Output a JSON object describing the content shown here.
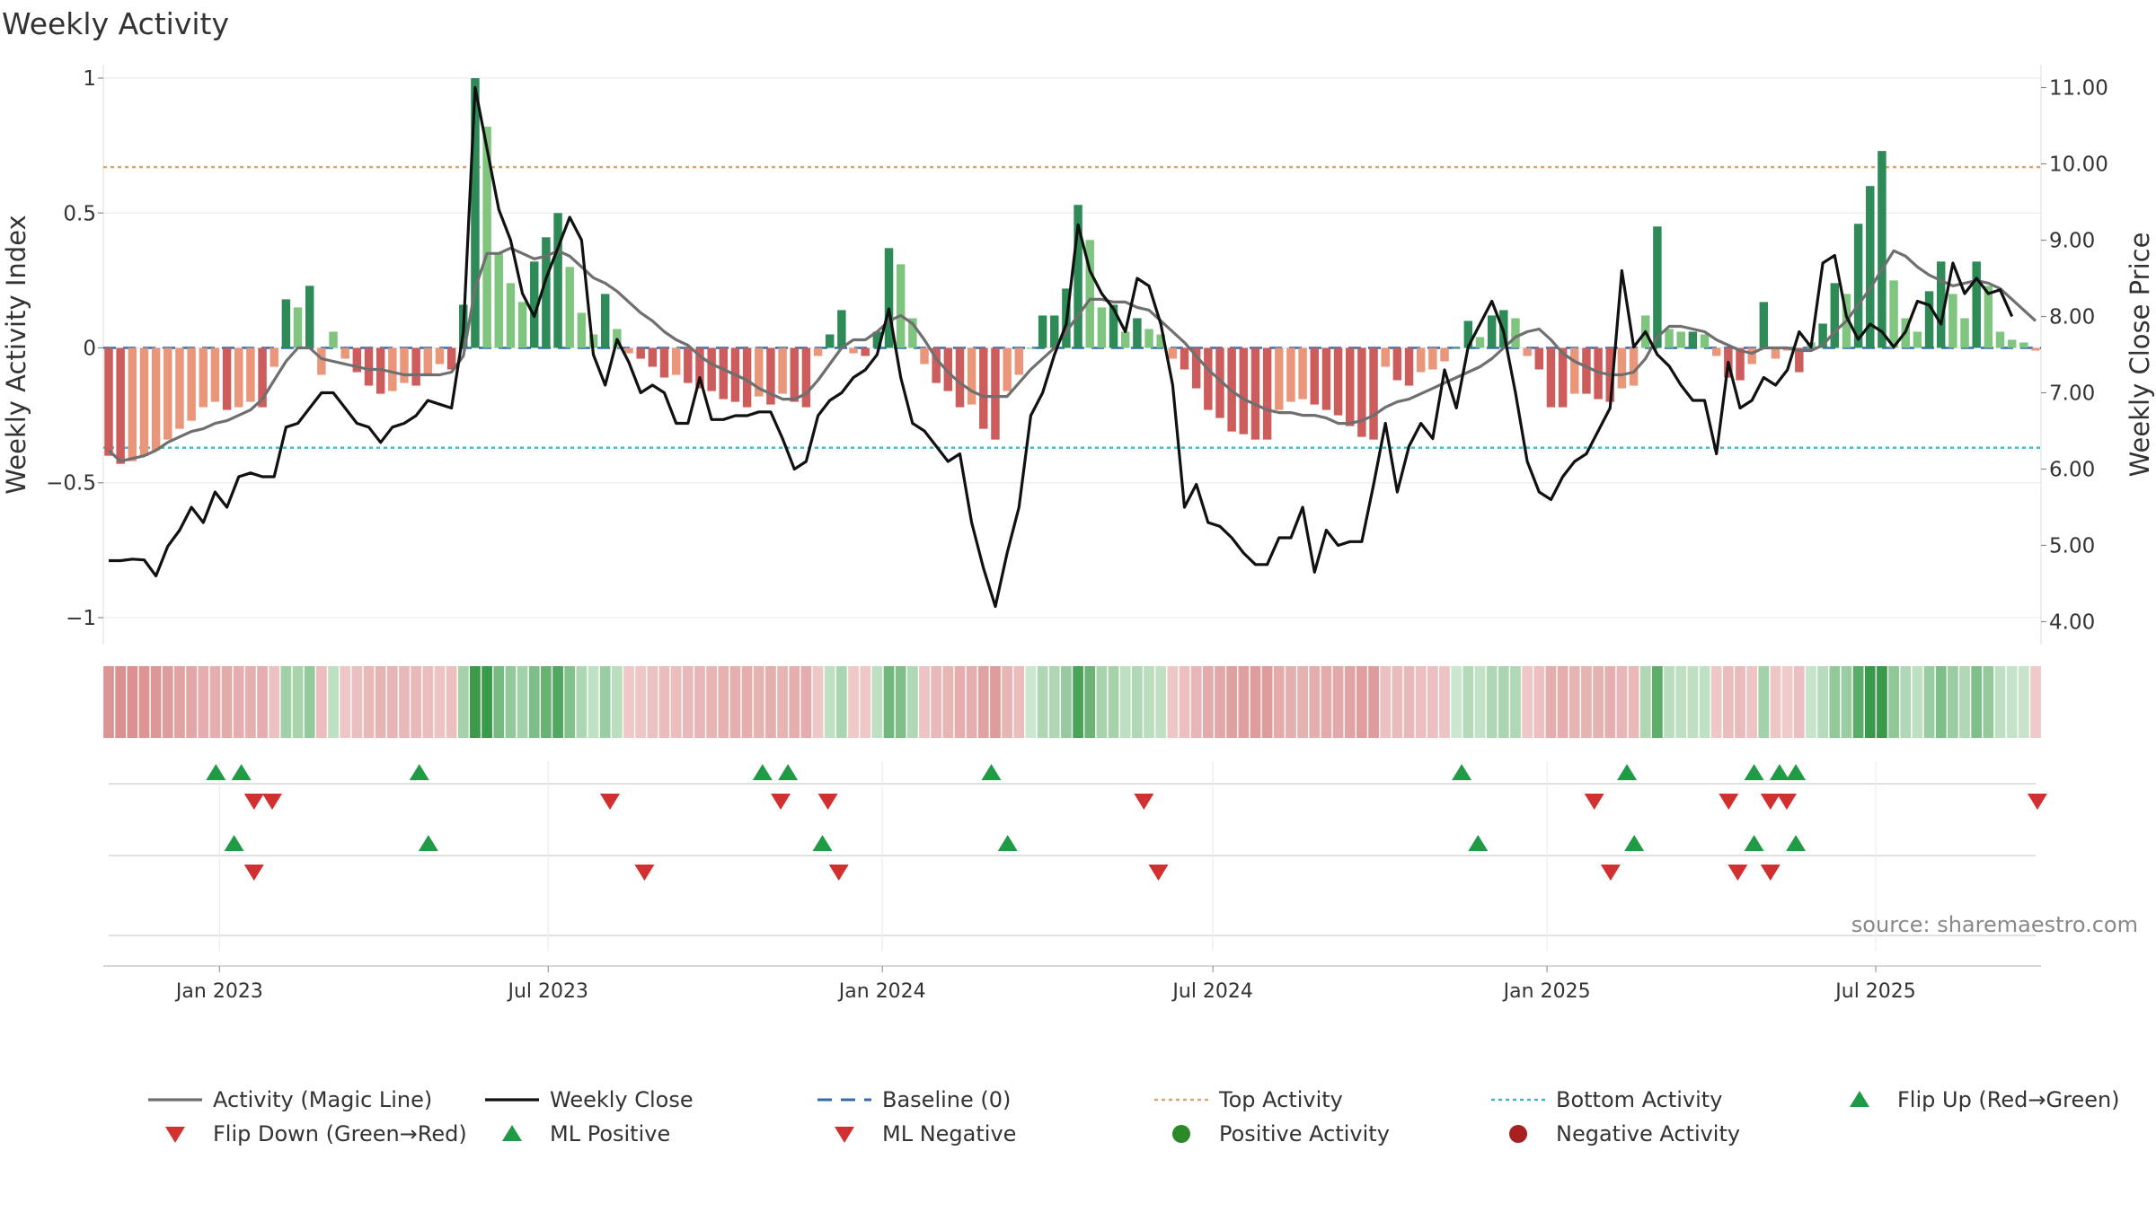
{
  "chart_data": {
    "type": "bar",
    "title": "Weekly Activity",
    "source": "source: sharemaestro.com",
    "left_axis": {
      "label": "Weekly Activity Index",
      "ylim": [
        -1.1,
        1.05
      ],
      "ticks": [
        1,
        0.5,
        0,
        -0.5,
        -1
      ],
      "tick_labels": [
        "1",
        "0.5",
        "0",
        "−0.5",
        "−1"
      ]
    },
    "right_axis": {
      "label": "Weekly Close Price",
      "ylim": [
        3.7,
        11.3
      ],
      "ticks": [
        11,
        10,
        9,
        8,
        7,
        6,
        5,
        4
      ],
      "tick_labels": [
        "11.00",
        "10.00",
        "9.00",
        "8.00",
        "7.00",
        "6.00",
        "5.00",
        "4.00"
      ]
    },
    "x_axis": {
      "start": "2022-10-29",
      "end": "2025-09-30",
      "tick_dates": [
        "2023-01-01",
        "2023-07-01",
        "2024-01-01",
        "2024-07-01",
        "2025-01-01",
        "2025-07-01"
      ],
      "tick_labels": [
        "Jan 2023",
        "Jul 2023",
        "Jan 2024",
        "Jul 2024",
        "Jan 2025",
        "Jul 2025"
      ]
    },
    "reference_lines": {
      "baseline": 0,
      "top_activity": 0.67,
      "bottom_activity": -0.37
    },
    "activity_index_weekly": [
      -0.4,
      -0.43,
      -0.42,
      -0.4,
      -0.38,
      -0.34,
      -0.3,
      -0.27,
      -0.22,
      -0.2,
      -0.23,
      -0.22,
      -0.2,
      -0.22,
      -0.07,
      0.18,
      0.15,
      0.23,
      -0.1,
      0.06,
      -0.04,
      -0.09,
      -0.14,
      -0.17,
      -0.16,
      -0.13,
      -0.14,
      -0.1,
      -0.06,
      -0.08,
      0.16,
      1.0,
      0.82,
      0.35,
      0.24,
      0.17,
      0.32,
      0.41,
      0.5,
      0.3,
      0.13,
      0.05,
      0.2,
      0.07,
      -0.02,
      -0.04,
      -0.07,
      -0.11,
      -0.1,
      -0.13,
      -0.15,
      -0.16,
      -0.19,
      -0.2,
      -0.22,
      -0.18,
      -0.21,
      -0.17,
      -0.2,
      -0.22,
      -0.03,
      0.05,
      0.14,
      -0.02,
      -0.03,
      0.06,
      0.37,
      0.31,
      0.11,
      -0.06,
      -0.13,
      -0.16,
      -0.22,
      -0.21,
      -0.3,
      -0.34,
      -0.16,
      -0.1,
      0.0,
      0.12,
      0.12,
      0.22,
      0.53,
      0.4,
      0.15,
      0.16,
      0.06,
      0.11,
      0.07,
      0.05,
      -0.04,
      -0.08,
      -0.15,
      -0.23,
      -0.26,
      -0.31,
      -0.32,
      -0.34,
      -0.34,
      -0.23,
      -0.2,
      -0.19,
      -0.21,
      -0.23,
      -0.25,
      -0.29,
      -0.33,
      -0.34,
      -0.07,
      -0.12,
      -0.14,
      -0.09,
      -0.08,
      -0.05,
      0.0,
      0.1,
      0.04,
      0.12,
      0.14,
      0.11,
      -0.03,
      -0.08,
      -0.22,
      -0.22,
      -0.17,
      -0.17,
      -0.19,
      -0.2,
      -0.15,
      -0.14,
      0.12,
      0.45,
      0.07,
      0.06,
      0.06,
      0.05,
      -0.03,
      -0.11,
      -0.12,
      -0.06,
      0.17,
      -0.04,
      -0.01,
      -0.09,
      0.02,
      0.09,
      0.24,
      0.2,
      0.46,
      0.6,
      0.73,
      0.25,
      0.11,
      0.06,
      0.21,
      0.32,
      0.2,
      0.11,
      0.32,
      0.23,
      0.06,
      0.03,
      0.02,
      -0.01
    ],
    "activity_magic_line": [
      -0.38,
      -0.42,
      -0.41,
      -0.4,
      -0.38,
      -0.35,
      -0.33,
      -0.31,
      -0.3,
      -0.28,
      -0.27,
      -0.25,
      -0.23,
      -0.19,
      -0.12,
      -0.05,
      0.0,
      0.0,
      -0.04,
      -0.05,
      -0.06,
      -0.07,
      -0.08,
      -0.08,
      -0.09,
      -0.1,
      -0.1,
      -0.1,
      -0.1,
      -0.09,
      -0.03,
      0.22,
      0.35,
      0.35,
      0.37,
      0.35,
      0.33,
      0.34,
      0.36,
      0.34,
      0.3,
      0.26,
      0.24,
      0.21,
      0.17,
      0.13,
      0.1,
      0.06,
      0.03,
      0.01,
      -0.03,
      -0.06,
      -0.08,
      -0.1,
      -0.12,
      -0.15,
      -0.17,
      -0.19,
      -0.19,
      -0.17,
      -0.12,
      -0.06,
      0.0,
      0.03,
      0.03,
      0.06,
      0.1,
      0.12,
      0.09,
      0.03,
      -0.04,
      -0.09,
      -0.13,
      -0.16,
      -0.18,
      -0.18,
      -0.18,
      -0.13,
      -0.08,
      -0.04,
      0.0,
      0.06,
      0.12,
      0.18,
      0.18,
      0.17,
      0.17,
      0.15,
      0.14,
      0.1,
      0.06,
      0.02,
      -0.03,
      -0.08,
      -0.12,
      -0.16,
      -0.19,
      -0.21,
      -0.23,
      -0.24,
      -0.24,
      -0.25,
      -0.25,
      -0.26,
      -0.28,
      -0.28,
      -0.27,
      -0.25,
      -0.22,
      -0.2,
      -0.19,
      -0.17,
      -0.15,
      -0.13,
      -0.11,
      -0.09,
      -0.07,
      -0.04,
      0.0,
      0.04,
      0.06,
      0.07,
      0.03,
      -0.02,
      -0.05,
      -0.07,
      -0.09,
      -0.1,
      -0.1,
      -0.09,
      -0.04,
      0.04,
      0.08,
      0.08,
      0.07,
      0.06,
      0.03,
      0.01,
      -0.01,
      -0.02,
      0.0,
      0.0,
      0.0,
      -0.01,
      -0.01,
      0.01,
      0.06,
      0.1,
      0.16,
      0.22,
      0.29,
      0.36,
      0.34,
      0.3,
      0.27,
      0.25,
      0.23,
      0.24,
      0.25,
      0.24,
      0.22,
      0.18,
      0.14,
      0.1
    ],
    "weekly_close": [
      4.8,
      4.8,
      4.82,
      4.81,
      4.6,
      4.99,
      5.2,
      5.5,
      5.3,
      5.7,
      5.5,
      5.9,
      5.95,
      5.9,
      5.9,
      6.55,
      6.6,
      6.8,
      7.0,
      7.0,
      6.8,
      6.6,
      6.55,
      6.35,
      6.55,
      6.6,
      6.7,
      6.9,
      6.85,
      6.8,
      7.8,
      11.0,
      10.2,
      9.4,
      9.0,
      8.3,
      8.0,
      8.5,
      8.9,
      9.3,
      9.0,
      7.5,
      7.1,
      7.7,
      7.4,
      7.0,
      7.1,
      7.0,
      6.6,
      6.6,
      7.2,
      6.65,
      6.65,
      6.7,
      6.7,
      6.75,
      6.75,
      6.4,
      6.0,
      6.1,
      6.7,
      6.9,
      7.0,
      7.2,
      7.3,
      7.5,
      8.1,
      7.2,
      6.6,
      6.5,
      6.3,
      6.1,
      6.2,
      5.3,
      4.7,
      4.2,
      4.9,
      5.5,
      6.7,
      7.0,
      7.5,
      7.9,
      9.2,
      8.6,
      8.3,
      8.1,
      7.8,
      8.5,
      8.4,
      7.9,
      7.1,
      5.5,
      5.8,
      5.3,
      5.25,
      5.1,
      4.9,
      4.75,
      4.75,
      5.1,
      5.1,
      5.5,
      4.65,
      5.2,
      5.0,
      5.05,
      5.05,
      5.8,
      6.6,
      5.7,
      6.3,
      6.6,
      6.4,
      7.3,
      6.8,
      7.6,
      7.9,
      8.2,
      7.8,
      7.0,
      6.1,
      5.7,
      5.6,
      5.9,
      6.1,
      6.2,
      6.5,
      6.8,
      8.6,
      7.6,
      7.8,
      7.5,
      7.35,
      7.1,
      6.9,
      6.9,
      6.2,
      7.4,
      6.8,
      6.9,
      7.2,
      7.1,
      7.3,
      7.8,
      7.6,
      8.7,
      8.8,
      8.0,
      7.7,
      7.9,
      7.8,
      7.6,
      7.8,
      8.2,
      8.15,
      7.9,
      8.7,
      8.3,
      8.5,
      8.3,
      8.35,
      8.0
    ]
  },
  "flip_rows": {
    "flip_up": [
      "2022-12-30",
      "2023-01-13",
      "2023-04-21",
      "2023-10-27",
      "2023-11-10",
      "2024-03-01",
      "2024-11-15",
      "2025-02-14",
      "2025-04-25",
      "2025-05-09",
      "2025-05-18"
    ],
    "flip_down": [
      "2023-01-20",
      "2023-01-30",
      "2023-08-04",
      "2023-11-06",
      "2023-12-02",
      "2024-05-24",
      "2025-01-27",
      "2025-04-11",
      "2025-05-04",
      "2025-05-13",
      "2025-09-28"
    ],
    "ml_positive": [
      "2023-01-09",
      "2023-04-26",
      "2023-11-29",
      "2024-03-10",
      "2024-11-24",
      "2025-02-18",
      "2025-04-25",
      "2025-05-18"
    ],
    "ml_negative": [
      "2023-01-20",
      "2023-08-23",
      "2023-12-08",
      "2024-06-01",
      "2025-02-05",
      "2025-04-16",
      "2025-05-04"
    ]
  },
  "legend": [
    {
      "label": "Activity (Magic Line)",
      "marker": "line",
      "color": "#6f6f6f"
    },
    {
      "label": "Weekly Close",
      "marker": "line",
      "color": "#111111"
    },
    {
      "label": "Baseline (0)",
      "marker": "dash",
      "color": "#2e6fb0"
    },
    {
      "label": "Top Activity",
      "marker": "dot",
      "color": "#e0a56b"
    },
    {
      "label": "Bottom Activity",
      "marker": "dot",
      "color": "#2bbdd0"
    },
    {
      "label": "Flip Up (Red→Green)",
      "marker": "triangle-up",
      "color": "#1f9a45"
    },
    {
      "label": "Flip Down (Green→Red)",
      "marker": "triangle-down",
      "color": "#d03030"
    },
    {
      "label": "ML Positive",
      "marker": "triangle-up",
      "color": "#1f9a45"
    },
    {
      "label": "ML Negative",
      "marker": "triangle-down",
      "color": "#d03030"
    },
    {
      "label": "Positive Activity",
      "marker": "circle",
      "color": "#2a8a2a"
    },
    {
      "label": "Negative Activity",
      "marker": "circle",
      "color": "#a82020"
    }
  ],
  "colors": {
    "pos_dark": "#2e8b57",
    "pos_light": "#7fc47f",
    "neg_dark": "#cd5c5c",
    "neg_light": "#e9967a",
    "magic": "#6f6f6f",
    "close": "#111111",
    "baseline": "#2e6fb0",
    "top": "#e0a56b",
    "bottom": "#2bbdd0",
    "up": "#1f9a45",
    "down": "#d03030"
  }
}
